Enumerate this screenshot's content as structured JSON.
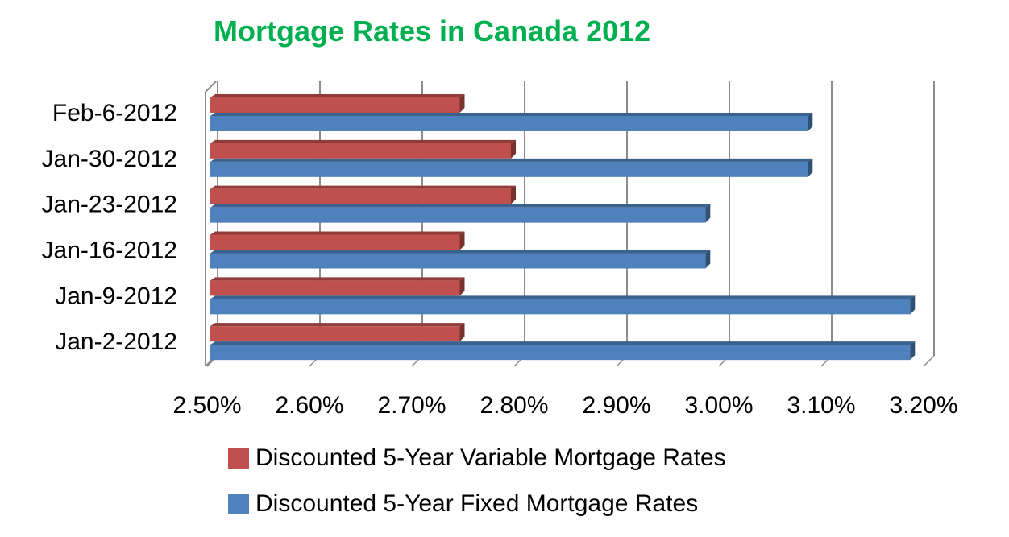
{
  "chart_data": {
    "type": "bar",
    "orientation": "horizontal",
    "style": "3d-clustered",
    "title": "Mortgage Rates in Canada 2012",
    "title_color": "#00B050",
    "xlabel": "",
    "ylabel": "",
    "categories": [
      "Feb-6-2012",
      "Jan-30-2012",
      "Jan-23-2012",
      "Jan-16-2012",
      "Jan-9-2012",
      "Jan-2-2012"
    ],
    "series": [
      {
        "name": "Discounted 5-Year Variable Mortgage Rates",
        "color": "#C0504D",
        "values": [
          2.75,
          2.8,
          2.8,
          2.75,
          2.75,
          2.75
        ]
      },
      {
        "name": "Discounted 5-Year Fixed Mortgage Rates",
        "color": "#4F81BD",
        "values": [
          3.09,
          3.09,
          2.99,
          2.99,
          3.19,
          3.19
        ]
      }
    ],
    "xlim": [
      2.5,
      3.2
    ],
    "x_ticks": [
      "2.50%",
      "2.60%",
      "2.70%",
      "2.80%",
      "2.90%",
      "3.00%",
      "3.10%",
      "3.20%"
    ],
    "x_tick_values": [
      2.5,
      2.6,
      2.7,
      2.8,
      2.9,
      3.0,
      3.1,
      3.2
    ],
    "unit": "%",
    "grid": true,
    "legend_position": "bottom"
  },
  "legend": {
    "items": [
      {
        "label": "Discounted 5-Year Variable Mortgage Rates",
        "color": "#C0504D"
      },
      {
        "label": "Discounted 5-Year Fixed Mortgage Rates",
        "color": "#4F81BD"
      }
    ]
  }
}
